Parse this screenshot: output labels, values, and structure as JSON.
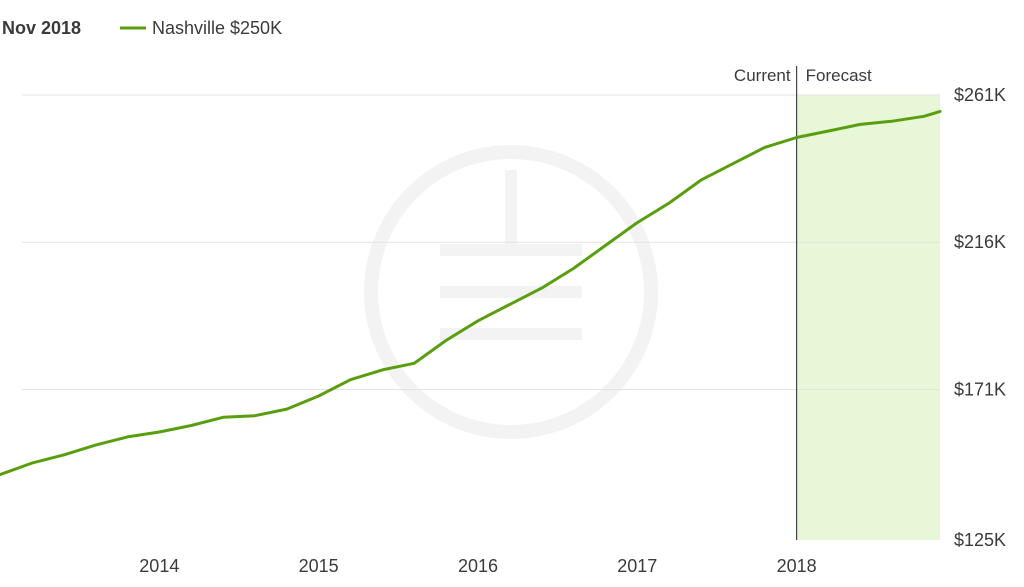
{
  "legend": {
    "date": "Nov 2018",
    "series_label": "Nashville $250K"
  },
  "annotations": {
    "current": "Current",
    "forecast": "Forecast"
  },
  "colors": {
    "line": "#5a9e0f",
    "forecast_fill": "#e9f7d9",
    "grid": "#e3e3e3",
    "divider": "#444444",
    "watermark": "#f2f2f2"
  },
  "chart_data": {
    "type": "line",
    "title": "",
    "xlabel": "",
    "ylabel": "",
    "y_tick_labels": [
      "$125K",
      "$171K",
      "$216K",
      "$261K"
    ],
    "y_ticks": [
      125000,
      171000,
      216000,
      261000
    ],
    "ylim": [
      125000,
      261000
    ],
    "x_tick_labels": [
      "2014",
      "2015",
      "2016",
      "2017",
      "2018"
    ],
    "x_ticks": [
      2014,
      2015,
      2016,
      2017,
      2018
    ],
    "xlim": [
      2013.0,
      2018.9
    ],
    "grid": true,
    "legend_position": "top-left",
    "forecast_start": 2018.0,
    "series": [
      {
        "name": "Nashville $250K",
        "x": [
          2013.0,
          2013.2,
          2013.4,
          2013.6,
          2013.8,
          2014.0,
          2014.2,
          2014.4,
          2014.6,
          2014.8,
          2015.0,
          2015.2,
          2015.4,
          2015.6,
          2015.8,
          2016.0,
          2016.2,
          2016.4,
          2016.6,
          2016.8,
          2017.0,
          2017.2,
          2017.4,
          2017.6,
          2017.8,
          2018.0,
          2018.2,
          2018.4,
          2018.6,
          2018.8,
          2018.9
        ],
        "y": [
          145000,
          148500,
          151000,
          154000,
          156500,
          158000,
          160000,
          162500,
          163000,
          165000,
          169000,
          174000,
          177000,
          179000,
          186000,
          192000,
          197000,
          202000,
          208000,
          215000,
          222000,
          228000,
          235000,
          240000,
          245000,
          248000,
          250000,
          252000,
          253000,
          254500,
          256000
        ]
      }
    ]
  }
}
